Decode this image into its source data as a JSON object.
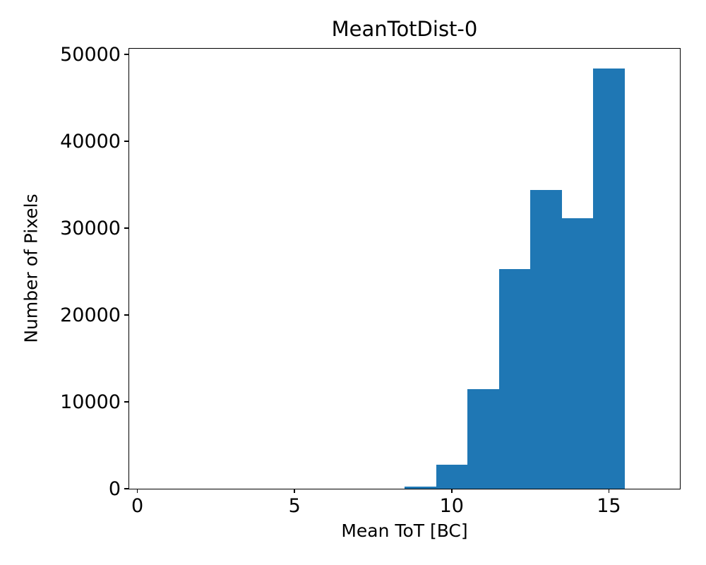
{
  "chart": {
    "title": "MeanTotDist-0",
    "xlabel": "Mean ToT [BC]",
    "ylabel": "Number of Pixels"
  },
  "chart_data": {
    "type": "bar",
    "subtype": "histogram",
    "title": "MeanTotDist-0",
    "xlabel": "Mean ToT [BC]",
    "ylabel": "Number of Pixels",
    "bar_color": "#1f77b4",
    "bin_edges": [
      8.5,
      9.5,
      10.5,
      11.5,
      12.5,
      13.5,
      14.5,
      15.5
    ],
    "values": [
      280,
      2770,
      11500,
      25300,
      34350,
      31100,
      48400
    ],
    "xticks": [
      0,
      5,
      10,
      15
    ],
    "xtick_labels": [
      "0",
      "5",
      "10",
      "15"
    ],
    "yticks": [
      0,
      10000,
      20000,
      30000,
      40000,
      50000
    ],
    "ytick_labels": [
      "0",
      "10000",
      "20000",
      "30000",
      "40000",
      "50000"
    ],
    "xlim": [
      -0.26,
      17.26
    ],
    "ylim": [
      0,
      50650
    ],
    "grid": false,
    "legend": null
  }
}
